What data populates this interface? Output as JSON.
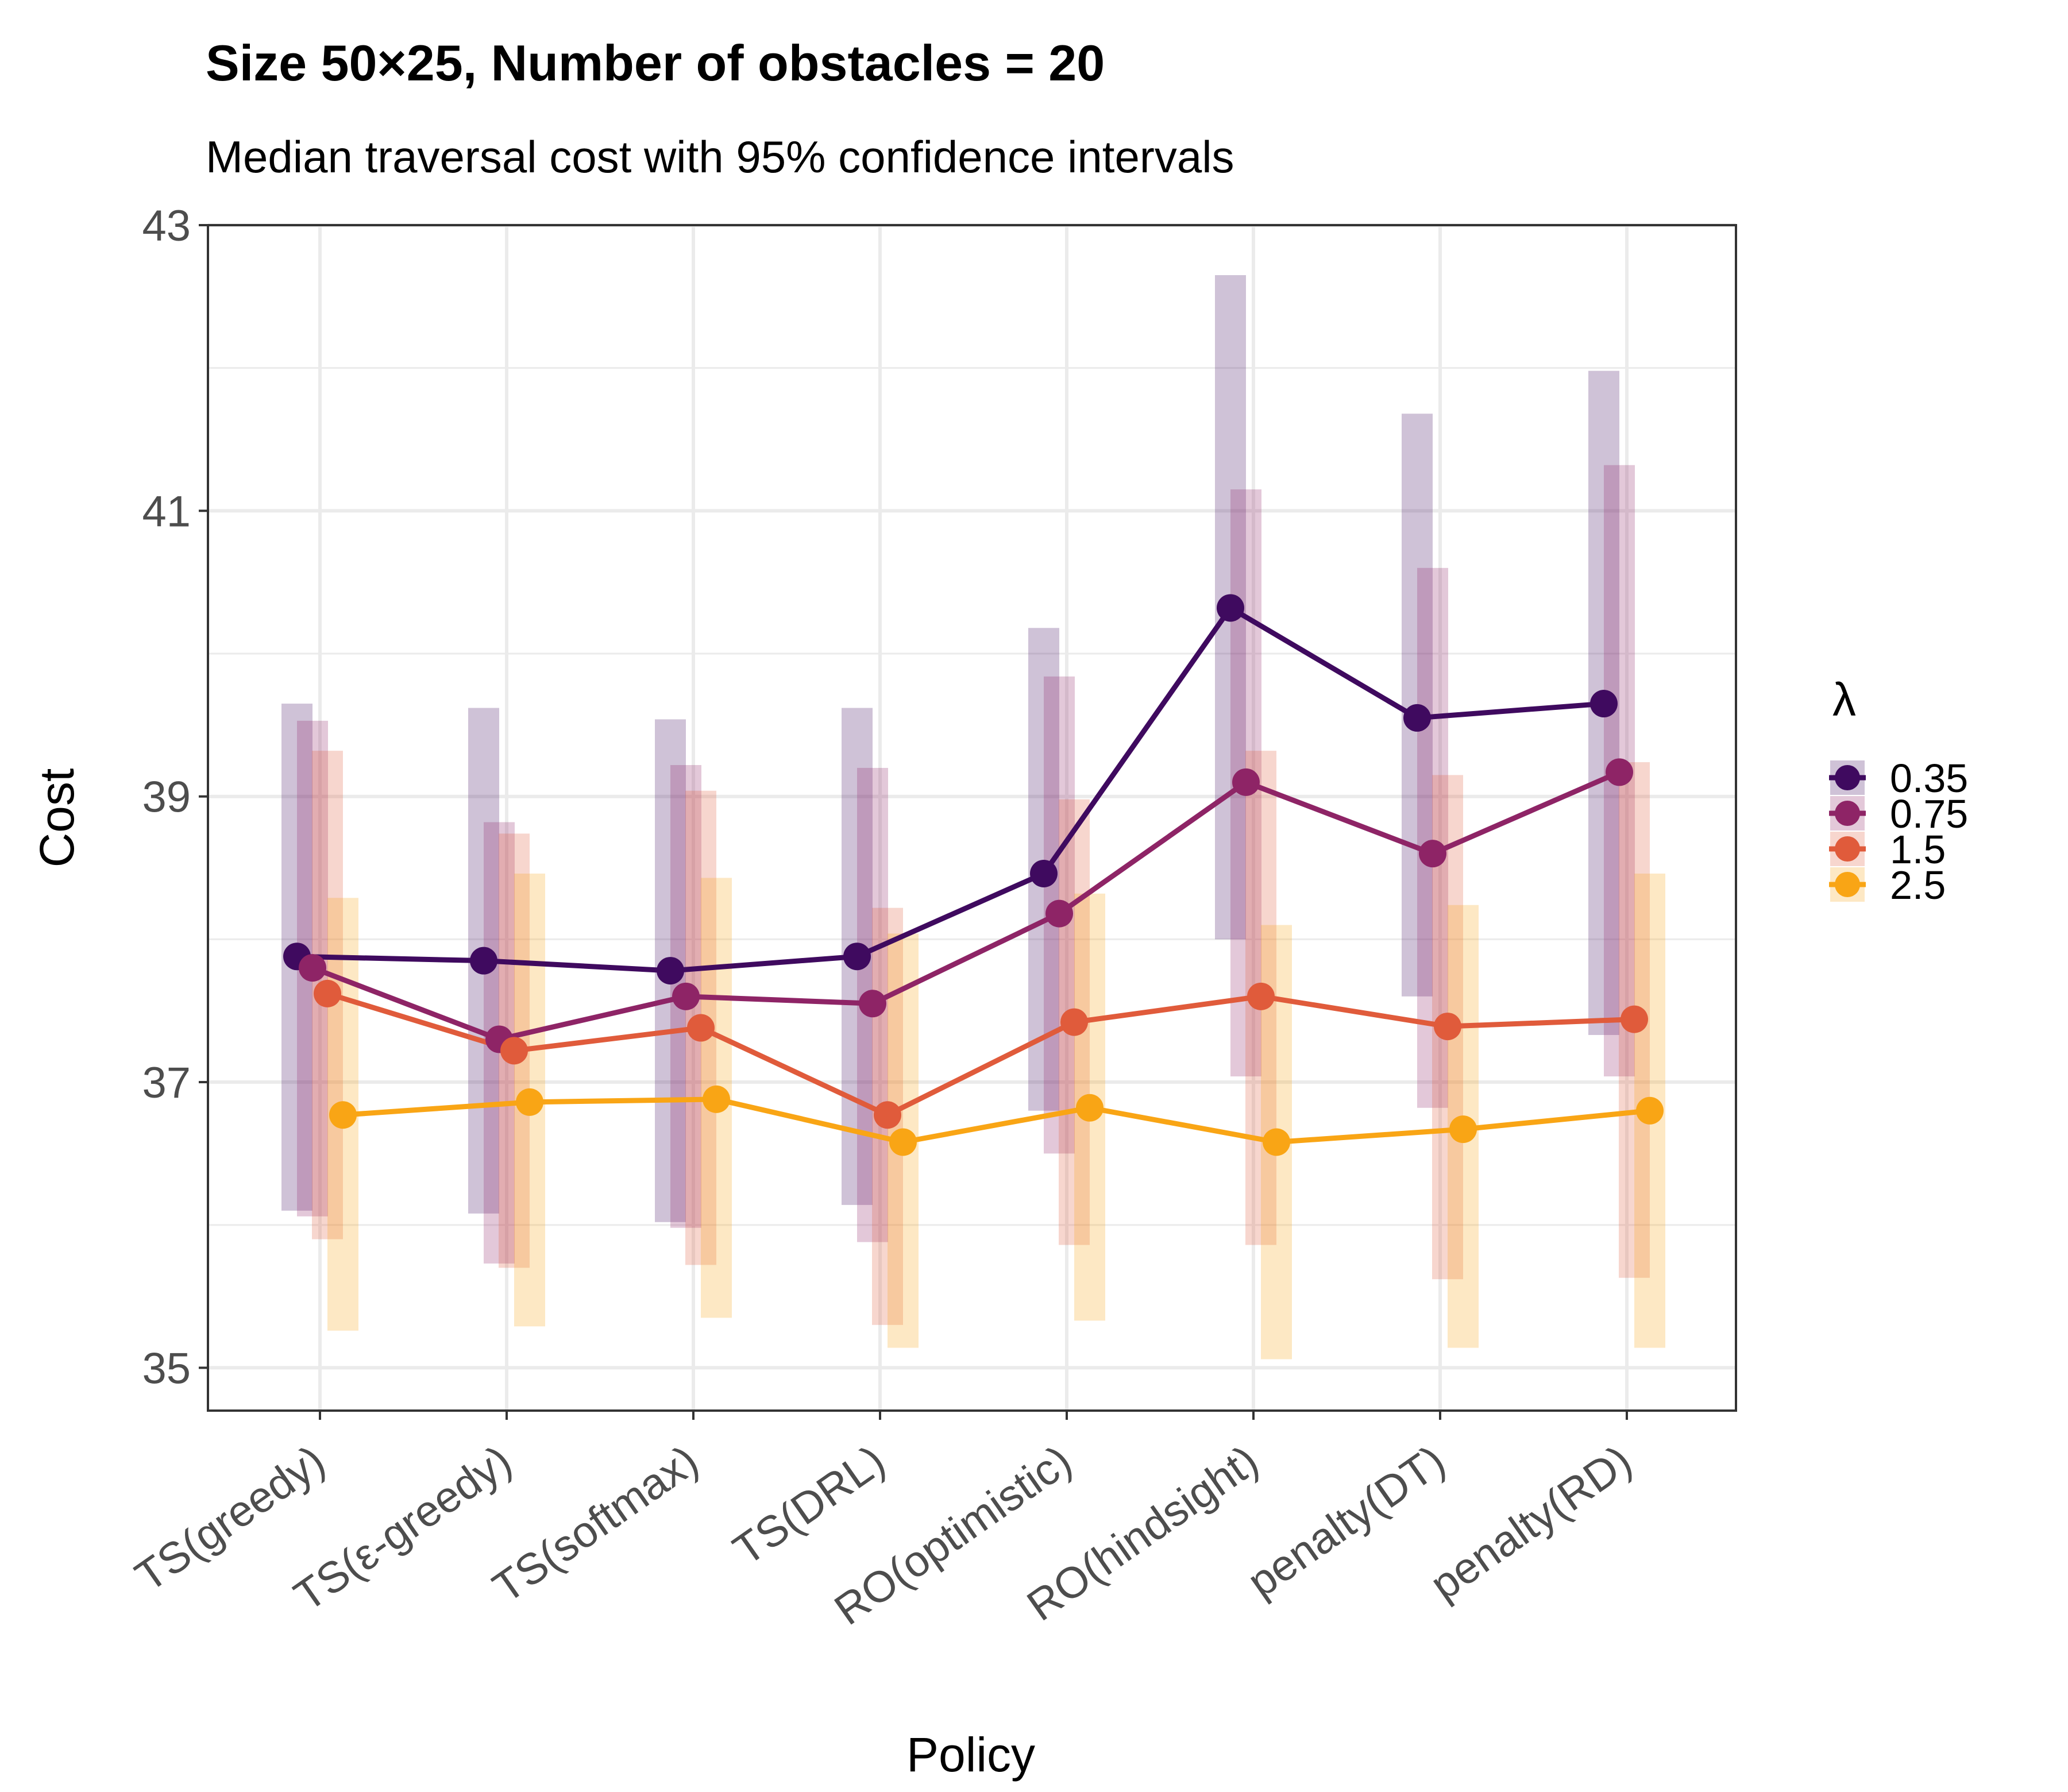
{
  "chart_data": {
    "type": "line",
    "title": "Size 50×25, Number of obstacles = 20",
    "subtitle": "Median traversal cost with 95% confidence intervals",
    "xlabel": "Policy",
    "ylabel": "Cost",
    "categories": [
      "TS(greedy)",
      "TS(ε-greedy)",
      "TS(softmax)",
      "TS(DRL)",
      "RO(optimistic)",
      "RO(hindsight)",
      "penalty(DT)",
      "penalty(RD)"
    ],
    "ylim": [
      34.7,
      43
    ],
    "yticks": [
      35,
      37,
      39,
      41,
      43
    ],
    "grid": true,
    "legend": {
      "title": "λ",
      "position": "right"
    },
    "series": [
      {
        "name": "0.35",
        "color": "#3f0a5f",
        "values": [
          37.88,
          37.85,
          37.78,
          37.88,
          38.46,
          40.32,
          39.55,
          39.65
        ],
        "ci_low": [
          36.1,
          36.08,
          36.02,
          36.14,
          36.8,
          38.0,
          37.6,
          37.33
        ],
        "ci_high": [
          39.65,
          39.62,
          39.54,
          39.62,
          40.18,
          42.65,
          41.68,
          41.98
        ]
      },
      {
        "name": "0.75",
        "color": "#8e2466",
        "values": [
          37.8,
          37.3,
          37.6,
          37.55,
          38.18,
          39.1,
          38.6,
          39.17
        ],
        "ci_low": [
          36.06,
          35.73,
          35.98,
          35.88,
          36.5,
          37.04,
          36.82,
          37.04
        ],
        "ci_high": [
          39.53,
          38.82,
          39.22,
          39.2,
          39.84,
          41.15,
          40.6,
          41.32
        ]
      },
      {
        "name": "1.5",
        "color": "#e05b3b",
        "values": [
          37.62,
          37.22,
          37.38,
          36.77,
          37.42,
          37.6,
          37.39,
          37.44
        ],
        "ci_low": [
          35.9,
          35.7,
          35.72,
          35.3,
          35.86,
          35.86,
          35.62,
          35.63
        ],
        "ci_high": [
          39.32,
          38.74,
          39.04,
          38.22,
          38.98,
          39.32,
          39.15,
          39.24
        ]
      },
      {
        "name": "2.5",
        "color": "#f9a515",
        "values": [
          36.77,
          36.86,
          36.88,
          36.58,
          36.82,
          36.58,
          36.67,
          36.8
        ],
        "ci_low": [
          35.26,
          35.29,
          35.35,
          35.14,
          35.33,
          35.06,
          35.14,
          35.14
        ],
        "ci_high": [
          38.29,
          38.46,
          38.43,
          38.04,
          38.32,
          38.1,
          38.24,
          38.46
        ]
      }
    ]
  }
}
